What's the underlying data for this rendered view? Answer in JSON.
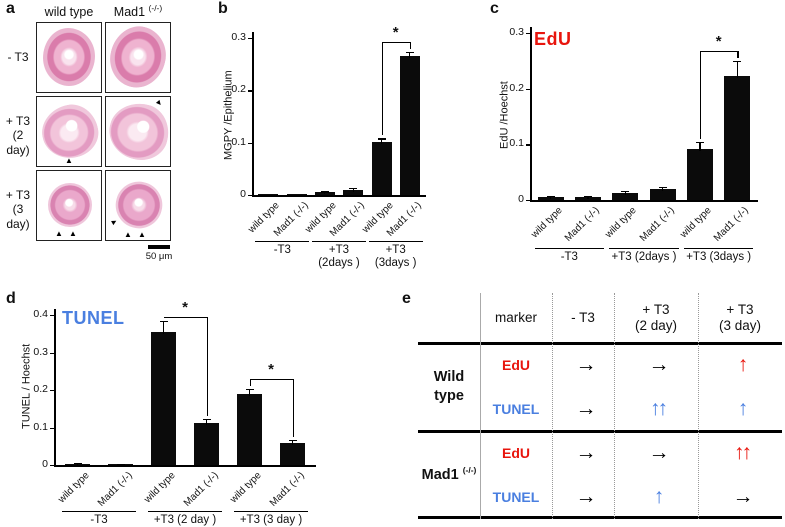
{
  "panels": {
    "a": "a",
    "b": "b",
    "c": "c",
    "d": "d",
    "e": "e"
  },
  "panel_a": {
    "col_headers": [
      {
        "base": "wild type",
        "sup": ""
      },
      {
        "base": "Mad1 ",
        "sup": "(-/-)"
      }
    ],
    "row_labels": [
      "- T3",
      "+ T3\n(2 day)",
      "+ T3\n(3 day)"
    ],
    "scale_bar_label": "50 μm",
    "arrowhead": "▲"
  },
  "chart_data": [
    {
      "id": "b",
      "type": "bar",
      "title": "",
      "title_color": "#000000",
      "ylabel": "MGPY /Epithelium",
      "ylim": [
        0,
        0.3
      ],
      "yticks": [
        "0",
        "0.1",
        "0.2",
        "0.3"
      ],
      "categories": [
        "wild type",
        "Mad1 (-/-)",
        "wild type",
        "Mad1 (-/-)",
        "wild type",
        "Mad1 (-/-)"
      ],
      "values": [
        0.002,
        0.002,
        0.005,
        0.01,
        0.102,
        0.265
      ],
      "errors": [
        0,
        0,
        0.002,
        0.003,
        0.006,
        0.008
      ],
      "groups": [
        "-T3",
        "+T3\n(2days )",
        "+T3\n(3days )"
      ],
      "significance": [
        {
          "from": 4,
          "to": 5,
          "label": "*"
        }
      ],
      "bar_color": "#0b0b0b",
      "legend_position": "none",
      "grid": false
    },
    {
      "id": "c",
      "type": "bar",
      "title": "EdU",
      "title_color": "#e8150d",
      "ylabel": "EdU /Hoechst",
      "ylim": [
        0,
        0.3
      ],
      "yticks": [
        "0",
        "0.1",
        "0.2",
        "0.3"
      ],
      "categories": [
        "wild type",
        "Mad1 (-/-)",
        "wild type",
        "Mad1 (-/-)",
        "wild type",
        "Mad1 (-/-)"
      ],
      "values": [
        0.005,
        0.005,
        0.013,
        0.02,
        0.092,
        0.222
      ],
      "errors": [
        0.002,
        0.002,
        0.003,
        0.004,
        0.012,
        0.028
      ],
      "groups": [
        "-T3",
        "+T3 (2days )",
        "+T3 (3days )"
      ],
      "significance": [
        {
          "from": 4,
          "to": 5,
          "label": "*"
        }
      ],
      "bar_color": "#0b0b0b",
      "legend_position": "none",
      "grid": false
    },
    {
      "id": "d",
      "type": "bar",
      "title": "TUNEL",
      "title_color": "#4a7fe0",
      "ylabel": "TUNEL / Hoechst",
      "ylim": [
        0,
        0.4
      ],
      "yticks": [
        "0",
        "0.1",
        "0.2",
        "0.3",
        "0.4"
      ],
      "categories": [
        "wild type",
        "Mad1 (-/-)",
        "wild type",
        "Mad1 (-/-)",
        "wild type",
        "Mad1 (-/-)"
      ],
      "values": [
        0.004,
        0.002,
        0.355,
        0.112,
        0.19,
        0.06
      ],
      "errors": [
        0.001,
        0.001,
        0.03,
        0.01,
        0.012,
        0.006
      ],
      "groups": [
        "-T3",
        "+T3 (2 day )",
        "+T3 (3 day )"
      ],
      "significance": [
        {
          "from": 2,
          "to": 3,
          "label": "*"
        },
        {
          "from": 4,
          "to": 5,
          "label": "*"
        }
      ],
      "bar_color": "#0b0b0b",
      "legend_position": "none",
      "grid": false
    }
  ],
  "panel_e": {
    "header": [
      "marker",
      "- T3",
      "+ T3\n(2 day)",
      "+ T3\n(3 day)"
    ],
    "groups": [
      {
        "name": "Wild\ntype",
        "name_sup": "",
        "rows": [
          {
            "marker": "EdU",
            "marker_color": "#e8150d",
            "cells": [
              {
                "glyph": "→",
                "color": "#000000"
              },
              {
                "glyph": "→",
                "color": "#000000"
              },
              {
                "glyph": "↑",
                "color": "#e8150d"
              }
            ]
          },
          {
            "marker": "TUNEL",
            "marker_color": "#4a7fe0",
            "cells": [
              {
                "glyph": "→",
                "color": "#000000"
              },
              {
                "glyph": "↑↑",
                "color": "#4a7fe0"
              },
              {
                "glyph": "↑",
                "color": "#4a7fe0"
              }
            ]
          }
        ]
      },
      {
        "name": "Mad1 ",
        "name_sup": "(-/-)",
        "rows": [
          {
            "marker": "EdU",
            "marker_color": "#e8150d",
            "cells": [
              {
                "glyph": "→",
                "color": "#000000"
              },
              {
                "glyph": "→",
                "color": "#000000"
              },
              {
                "glyph": "↑↑",
                "color": "#e8150d"
              }
            ]
          },
          {
            "marker": "TUNEL",
            "marker_color": "#4a7fe0",
            "cells": [
              {
                "glyph": "→",
                "color": "#000000"
              },
              {
                "glyph": "↑",
                "color": "#4a7fe0"
              },
              {
                "glyph": "→",
                "color": "#000000"
              }
            ]
          }
        ]
      }
    ]
  }
}
